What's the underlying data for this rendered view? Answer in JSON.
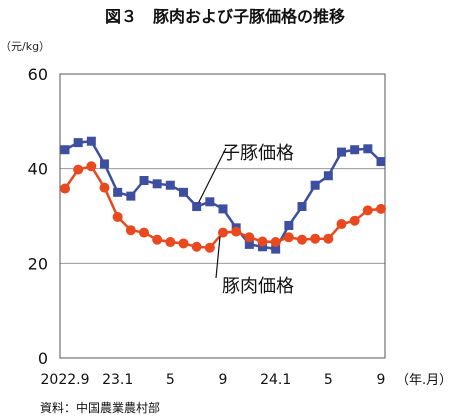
{
  "chart_data": {
    "type": "line",
    "title": "図３　豚肉および子豚価格の推移",
    "unit_label": "（元/kg）",
    "x_unit_label": "（年.月）",
    "source": "資料：中国農業農村部",
    "ylim": [
      0,
      60
    ],
    "yticks": [
      0,
      20,
      40,
      60
    ],
    "grid": true,
    "x_tick_labels": [
      {
        "label": "2022.9",
        "index": 0
      },
      {
        "label": "23.1",
        "index": 4
      },
      {
        "label": "5",
        "index": 8
      },
      {
        "label": "9",
        "index": 12
      },
      {
        "label": "24.1",
        "index": 16
      },
      {
        "label": "5",
        "index": 20
      },
      {
        "label": "9",
        "index": 24
      }
    ],
    "x": [
      "2022.9",
      "2022.10",
      "2022.11",
      "2022.12",
      "2023.1",
      "2023.2",
      "2023.3",
      "2023.4",
      "2023.5",
      "2023.6",
      "2023.7",
      "2023.8",
      "2023.9",
      "2023.10",
      "2023.11",
      "2023.12",
      "2024.1",
      "2024.2",
      "2024.3",
      "2024.4",
      "2024.5",
      "2024.6",
      "2024.7",
      "2024.8",
      "2024.9"
    ],
    "series": [
      {
        "name": "子豚価格",
        "color": "#3f4fa0",
        "marker": "square",
        "values": [
          44.0,
          45.5,
          45.8,
          41.0,
          35.0,
          34.2,
          37.5,
          36.8,
          36.5,
          35.0,
          32.0,
          33.0,
          31.5,
          27.5,
          24.0,
          23.5,
          23.0,
          28.0,
          32.0,
          36.5,
          38.5,
          43.5,
          44.0,
          44.2,
          41.5
        ]
      },
      {
        "name": "豚肉価格",
        "color": "#e8491e",
        "marker": "circle",
        "values": [
          35.8,
          39.8,
          40.5,
          36.0,
          29.8,
          27.0,
          26.5,
          25.0,
          24.5,
          24.2,
          23.5,
          23.3,
          26.5,
          26.7,
          25.5,
          24.6,
          24.5,
          25.5,
          25.0,
          25.2,
          25.2,
          28.3,
          29.0,
          31.2,
          31.5
        ]
      }
    ]
  }
}
